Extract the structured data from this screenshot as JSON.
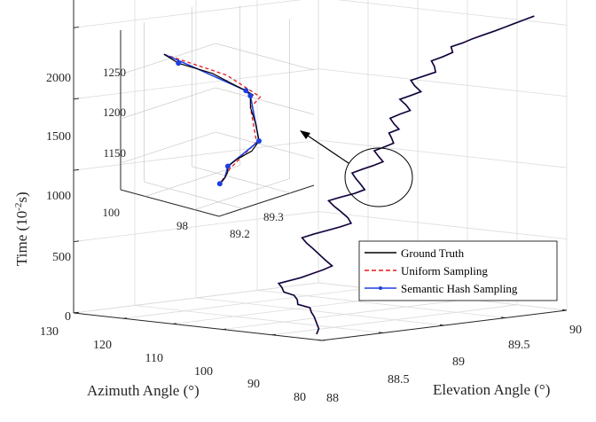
{
  "chart_data": {
    "type": "line3d",
    "title": "",
    "axes": {
      "x": {
        "label": "Azimuth Angle (°)",
        "range": [
          80,
          130
        ],
        "ticks": [
          "130",
          "120",
          "110",
          "100",
          "90",
          "80"
        ]
      },
      "y": {
        "label": "Elevation Angle (°)",
        "range": [
          88,
          90
        ],
        "ticks": [
          "88",
          "88.5",
          "89",
          "89.5",
          "90"
        ]
      },
      "z": {
        "label_main": "Time (10",
        "label_sup": "-2",
        "label_end": "s)",
        "range": [
          0,
          2300
        ],
        "ticks": [
          "0",
          "500",
          "1000",
          "1500",
          "2000"
        ]
      }
    },
    "grid": true,
    "legend": {
      "placement": "bottom-right",
      "entries": [
        {
          "label": "Ground Truth",
          "color": "#000000",
          "style": "solid"
        },
        {
          "label": "Uniform Sampling",
          "color": "#e8161b",
          "style": "dashed"
        },
        {
          "label": "Semantic Hash Sampling",
          "color": "#1f3fe0",
          "style": "solid-marker"
        }
      ]
    },
    "series": [
      {
        "name": "Ground Truth",
        "points": [
          [
            86.0,
            88.2,
            0
          ],
          [
            86.8,
            88.25,
            30
          ],
          [
            88.5,
            88.3,
            60
          ],
          [
            90.2,
            88.35,
            90
          ],
          [
            92.0,
            88.4,
            110
          ],
          [
            93.5,
            88.45,
            130
          ],
          [
            95.2,
            88.42,
            150
          ],
          [
            96.8,
            88.48,
            170
          ],
          [
            98.4,
            88.52,
            190
          ],
          [
            100.0,
            88.5,
            210
          ],
          [
            101.6,
            88.55,
            230
          ],
          [
            103.0,
            88.58,
            250
          ],
          [
            101.2,
            88.6,
            275
          ],
          [
            99.5,
            88.62,
            300
          ],
          [
            98.0,
            88.65,
            330
          ],
          [
            96.5,
            88.68,
            360
          ],
          [
            95.2,
            88.7,
            390
          ],
          [
            97.0,
            88.72,
            420
          ],
          [
            99.0,
            88.75,
            450
          ],
          [
            101.0,
            88.78,
            480
          ],
          [
            102.8,
            88.8,
            510
          ],
          [
            104.2,
            88.82,
            540
          ],
          [
            102.5,
            88.85,
            570
          ],
          [
            100.5,
            88.88,
            600
          ],
          [
            98.5,
            88.9,
            630
          ],
          [
            96.8,
            88.92,
            660
          ],
          [
            98.2,
            88.95,
            690
          ],
          [
            100.3,
            88.98,
            720
          ],
          [
            102.2,
            89.0,
            750
          ],
          [
            103.8,
            89.02,
            780
          ],
          [
            102.0,
            89.05,
            810
          ],
          [
            100.0,
            89.08,
            840
          ],
          [
            98.5,
            89.1,
            870
          ],
          [
            99.8,
            89.12,
            900
          ],
          [
            101.5,
            89.15,
            930
          ],
          [
            103.0,
            89.18,
            960
          ],
          [
            101.5,
            89.2,
            990
          ],
          [
            99.8,
            89.22,
            1020
          ],
          [
            98.5,
            89.25,
            1050
          ],
          [
            100.2,
            89.28,
            1080
          ],
          [
            101.5,
            89.3,
            1110
          ],
          [
            100.0,
            89.32,
            1140
          ],
          [
            98.6,
            89.34,
            1170
          ],
          [
            99.5,
            89.36,
            1200
          ],
          [
            100.5,
            89.38,
            1230
          ],
          [
            99.0,
            89.4,
            1260
          ],
          [
            100.5,
            89.42,
            1290
          ],
          [
            102.0,
            89.45,
            1320
          ],
          [
            100.8,
            89.48,
            1350
          ],
          [
            99.2,
            89.5,
            1380
          ],
          [
            100.5,
            89.52,
            1410
          ],
          [
            102.5,
            89.55,
            1440
          ],
          [
            101.0,
            89.58,
            1470
          ],
          [
            99.5,
            89.6,
            1500
          ],
          [
            101.5,
            89.63,
            1530
          ],
          [
            103.0,
            89.66,
            1560
          ],
          [
            101.5,
            89.7,
            1590
          ],
          [
            100.0,
            89.74,
            1620
          ],
          [
            101.2,
            89.78,
            1650
          ],
          [
            102.8,
            89.82,
            1680
          ],
          [
            101.5,
            89.86,
            1710
          ],
          [
            100.5,
            89.9,
            1740
          ],
          [
            101.8,
            89.94,
            1770
          ],
          [
            100.2,
            89.97,
            1800
          ],
          [
            99.0,
            90.0,
            1830
          ],
          [
            97.5,
            90.03,
            1860
          ],
          [
            96.0,
            90.06,
            1890
          ],
          [
            94.5,
            90.08,
            1920
          ],
          [
            93.0,
            90.1,
            1950
          ],
          [
            91.5,
            90.12,
            1980
          ],
          [
            90.0,
            90.14,
            2010
          ]
        ]
      }
    ],
    "inset": {
      "axes": {
        "x": {
          "range": [
            97,
            101
          ],
          "ticks": [
            "100",
            "98"
          ]
        },
        "y": {
          "range": [
            89.15,
            89.35
          ],
          "ticks": [
            "89.2",
            "89.3"
          ]
        },
        "z": {
          "range": [
            1120,
            1270
          ],
          "ticks": [
            "1150",
            "1200",
            "1250"
          ]
        }
      },
      "ground_truth": [
        [
          100.2,
          89.2,
          1270
        ],
        [
          100.0,
          89.22,
          1258
        ],
        [
          99.4,
          89.26,
          1244
        ],
        [
          99.0,
          89.28,
          1232
        ],
        [
          98.8,
          89.3,
          1222
        ],
        [
          98.9,
          89.32,
          1213
        ],
        [
          99.2,
          89.33,
          1208
        ],
        [
          99.0,
          89.32,
          1198
        ],
        [
          98.2,
          89.29,
          1190
        ],
        [
          97.5,
          89.26,
          1182
        ],
        [
          97.4,
          89.24,
          1175
        ],
        [
          97.6,
          89.22,
          1168
        ],
        [
          97.8,
          89.21,
          1160
        ],
        [
          98.0,
          89.22,
          1150
        ],
        [
          98.3,
          89.23,
          1140
        ],
        [
          98.6,
          89.24,
          1132
        ],
        [
          98.9,
          89.25,
          1125
        ]
      ],
      "uniform_sampling": [
        [
          100.2,
          89.2,
          1270
        ],
        [
          99.2,
          89.28,
          1240
        ],
        [
          98.6,
          89.32,
          1213
        ],
        [
          99.0,
          89.32,
          1198
        ],
        [
          97.6,
          89.26,
          1180
        ],
        [
          97.9,
          89.22,
          1155
        ],
        [
          98.9,
          89.25,
          1125
        ]
      ],
      "semantic_hash": [
        [
          100.2,
          89.2,
          1270
        ],
        [
          99.8,
          89.24,
          1252
        ],
        [
          98.8,
          89.3,
          1222
        ],
        [
          99.2,
          89.33,
          1208
        ],
        [
          97.5,
          89.26,
          1182
        ],
        [
          97.8,
          89.21,
          1160
        ],
        [
          98.3,
          89.23,
          1140
        ],
        [
          98.9,
          89.25,
          1125
        ]
      ],
      "markers": [
        [
          100.0,
          89.22,
          1258
        ],
        [
          98.8,
          89.3,
          1222
        ],
        [
          99.2,
          89.33,
          1208
        ],
        [
          97.5,
          89.26,
          1182
        ],
        [
          97.8,
          89.21,
          1160
        ],
        [
          98.9,
          89.25,
          1125
        ]
      ]
    }
  },
  "colors": {
    "ground_truth": "#000000",
    "uniform": "#e8161b",
    "semantic": "#1f3fe0",
    "grid": "#dcdcdc"
  }
}
